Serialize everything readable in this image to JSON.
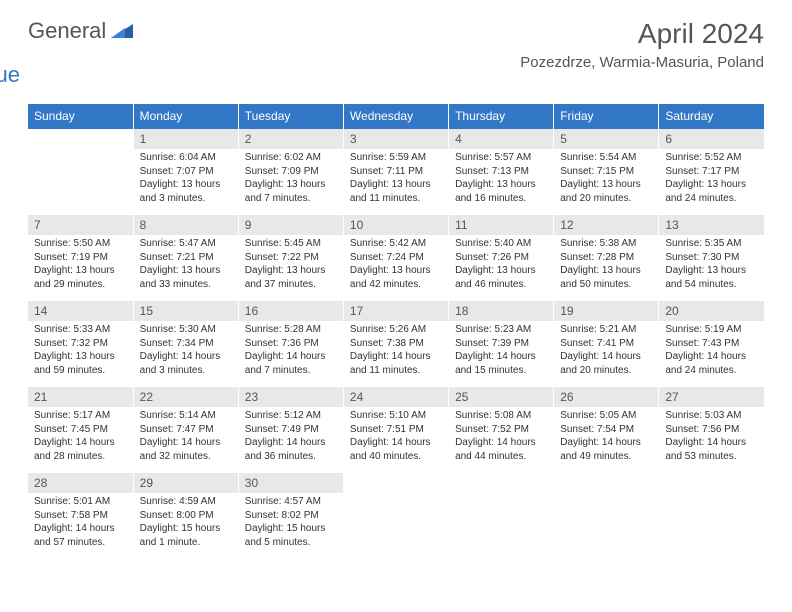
{
  "logo": {
    "word1": "General",
    "word2": "Blue"
  },
  "header": {
    "title": "April 2024",
    "location": "Pozezdrze, Warmia-Masuria, Poland"
  },
  "colors": {
    "header_bg": "#3278c6",
    "header_text": "#ffffff",
    "daynum_bg": "#e8e8e8",
    "text_dark": "#555555",
    "cell_text": "#333333",
    "page_bg": "#ffffff",
    "row_border": "#3278c6"
  },
  "typography": {
    "title_fontsize": 28,
    "location_fontsize": 15,
    "dayheader_fontsize": 12,
    "daynum_fontsize": 12,
    "body_fontsize": 10
  },
  "layout": {
    "cols": 7,
    "rows": 5,
    "cell_width_pct": 14.28
  },
  "day_headers": [
    "Sunday",
    "Monday",
    "Tuesday",
    "Wednesday",
    "Thursday",
    "Friday",
    "Saturday"
  ],
  "weeks": [
    [
      {
        "num": "",
        "sunrise": "",
        "sunset": "",
        "daylight": ""
      },
      {
        "num": "1",
        "sunrise": "Sunrise: 6:04 AM",
        "sunset": "Sunset: 7:07 PM",
        "daylight": "Daylight: 13 hours and 3 minutes."
      },
      {
        "num": "2",
        "sunrise": "Sunrise: 6:02 AM",
        "sunset": "Sunset: 7:09 PM",
        "daylight": "Daylight: 13 hours and 7 minutes."
      },
      {
        "num": "3",
        "sunrise": "Sunrise: 5:59 AM",
        "sunset": "Sunset: 7:11 PM",
        "daylight": "Daylight: 13 hours and 11 minutes."
      },
      {
        "num": "4",
        "sunrise": "Sunrise: 5:57 AM",
        "sunset": "Sunset: 7:13 PM",
        "daylight": "Daylight: 13 hours and 16 minutes."
      },
      {
        "num": "5",
        "sunrise": "Sunrise: 5:54 AM",
        "sunset": "Sunset: 7:15 PM",
        "daylight": "Daylight: 13 hours and 20 minutes."
      },
      {
        "num": "6",
        "sunrise": "Sunrise: 5:52 AM",
        "sunset": "Sunset: 7:17 PM",
        "daylight": "Daylight: 13 hours and 24 minutes."
      }
    ],
    [
      {
        "num": "7",
        "sunrise": "Sunrise: 5:50 AM",
        "sunset": "Sunset: 7:19 PM",
        "daylight": "Daylight: 13 hours and 29 minutes."
      },
      {
        "num": "8",
        "sunrise": "Sunrise: 5:47 AM",
        "sunset": "Sunset: 7:21 PM",
        "daylight": "Daylight: 13 hours and 33 minutes."
      },
      {
        "num": "9",
        "sunrise": "Sunrise: 5:45 AM",
        "sunset": "Sunset: 7:22 PM",
        "daylight": "Daylight: 13 hours and 37 minutes."
      },
      {
        "num": "10",
        "sunrise": "Sunrise: 5:42 AM",
        "sunset": "Sunset: 7:24 PM",
        "daylight": "Daylight: 13 hours and 42 minutes."
      },
      {
        "num": "11",
        "sunrise": "Sunrise: 5:40 AM",
        "sunset": "Sunset: 7:26 PM",
        "daylight": "Daylight: 13 hours and 46 minutes."
      },
      {
        "num": "12",
        "sunrise": "Sunrise: 5:38 AM",
        "sunset": "Sunset: 7:28 PM",
        "daylight": "Daylight: 13 hours and 50 minutes."
      },
      {
        "num": "13",
        "sunrise": "Sunrise: 5:35 AM",
        "sunset": "Sunset: 7:30 PM",
        "daylight": "Daylight: 13 hours and 54 minutes."
      }
    ],
    [
      {
        "num": "14",
        "sunrise": "Sunrise: 5:33 AM",
        "sunset": "Sunset: 7:32 PM",
        "daylight": "Daylight: 13 hours and 59 minutes."
      },
      {
        "num": "15",
        "sunrise": "Sunrise: 5:30 AM",
        "sunset": "Sunset: 7:34 PM",
        "daylight": "Daylight: 14 hours and 3 minutes."
      },
      {
        "num": "16",
        "sunrise": "Sunrise: 5:28 AM",
        "sunset": "Sunset: 7:36 PM",
        "daylight": "Daylight: 14 hours and 7 minutes."
      },
      {
        "num": "17",
        "sunrise": "Sunrise: 5:26 AM",
        "sunset": "Sunset: 7:38 PM",
        "daylight": "Daylight: 14 hours and 11 minutes."
      },
      {
        "num": "18",
        "sunrise": "Sunrise: 5:23 AM",
        "sunset": "Sunset: 7:39 PM",
        "daylight": "Daylight: 14 hours and 15 minutes."
      },
      {
        "num": "19",
        "sunrise": "Sunrise: 5:21 AM",
        "sunset": "Sunset: 7:41 PM",
        "daylight": "Daylight: 14 hours and 20 minutes."
      },
      {
        "num": "20",
        "sunrise": "Sunrise: 5:19 AM",
        "sunset": "Sunset: 7:43 PM",
        "daylight": "Daylight: 14 hours and 24 minutes."
      }
    ],
    [
      {
        "num": "21",
        "sunrise": "Sunrise: 5:17 AM",
        "sunset": "Sunset: 7:45 PM",
        "daylight": "Daylight: 14 hours and 28 minutes."
      },
      {
        "num": "22",
        "sunrise": "Sunrise: 5:14 AM",
        "sunset": "Sunset: 7:47 PM",
        "daylight": "Daylight: 14 hours and 32 minutes."
      },
      {
        "num": "23",
        "sunrise": "Sunrise: 5:12 AM",
        "sunset": "Sunset: 7:49 PM",
        "daylight": "Daylight: 14 hours and 36 minutes."
      },
      {
        "num": "24",
        "sunrise": "Sunrise: 5:10 AM",
        "sunset": "Sunset: 7:51 PM",
        "daylight": "Daylight: 14 hours and 40 minutes."
      },
      {
        "num": "25",
        "sunrise": "Sunrise: 5:08 AM",
        "sunset": "Sunset: 7:52 PM",
        "daylight": "Daylight: 14 hours and 44 minutes."
      },
      {
        "num": "26",
        "sunrise": "Sunrise: 5:05 AM",
        "sunset": "Sunset: 7:54 PM",
        "daylight": "Daylight: 14 hours and 49 minutes."
      },
      {
        "num": "27",
        "sunrise": "Sunrise: 5:03 AM",
        "sunset": "Sunset: 7:56 PM",
        "daylight": "Daylight: 14 hours and 53 minutes."
      }
    ],
    [
      {
        "num": "28",
        "sunrise": "Sunrise: 5:01 AM",
        "sunset": "Sunset: 7:58 PM",
        "daylight": "Daylight: 14 hours and 57 minutes."
      },
      {
        "num": "29",
        "sunrise": "Sunrise: 4:59 AM",
        "sunset": "Sunset: 8:00 PM",
        "daylight": "Daylight: 15 hours and 1 minute."
      },
      {
        "num": "30",
        "sunrise": "Sunrise: 4:57 AM",
        "sunset": "Sunset: 8:02 PM",
        "daylight": "Daylight: 15 hours and 5 minutes."
      },
      {
        "num": "",
        "sunrise": "",
        "sunset": "",
        "daylight": ""
      },
      {
        "num": "",
        "sunrise": "",
        "sunset": "",
        "daylight": ""
      },
      {
        "num": "",
        "sunrise": "",
        "sunset": "",
        "daylight": ""
      },
      {
        "num": "",
        "sunrise": "",
        "sunset": "",
        "daylight": ""
      }
    ]
  ]
}
